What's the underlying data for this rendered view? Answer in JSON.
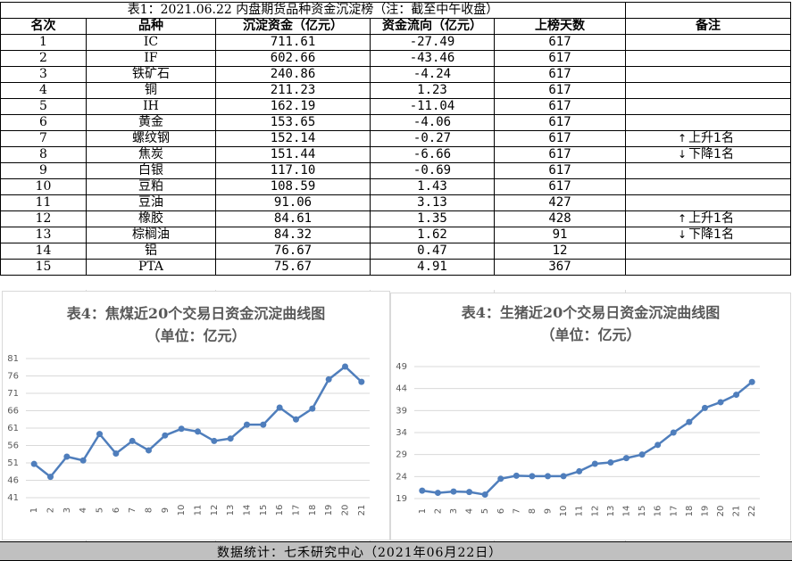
{
  "table": {
    "title": "表1：2021.06.22 内盘期货品种资金沉淀榜（注：截至中午收盘）",
    "headers": [
      "名次",
      "品种",
      "沉淀资金（亿元）",
      "资金流向（亿元）",
      "上榜天数",
      "备注"
    ],
    "rows": [
      {
        "rank": "1",
        "name": "IC",
        "sed": "711.61",
        "flow": "-27.49",
        "days": "617",
        "note": ""
      },
      {
        "rank": "2",
        "name": "IF",
        "sed": "602.66",
        "flow": "-43.46",
        "days": "617",
        "note": ""
      },
      {
        "rank": "3",
        "name": "铁矿石",
        "sed": "240.86",
        "flow": "-4.24",
        "days": "617",
        "note": ""
      },
      {
        "rank": "4",
        "name": "铜",
        "sed": "211.23",
        "flow": "1.23",
        "days": "617",
        "note": ""
      },
      {
        "rank": "5",
        "name": "IH",
        "sed": "162.19",
        "flow": "-11.04",
        "days": "617",
        "note": ""
      },
      {
        "rank": "6",
        "name": "黄金",
        "sed": "153.65",
        "flow": "-4.06",
        "days": "617",
        "note": ""
      },
      {
        "rank": "7",
        "name": "螺纹钢",
        "sed": "152.14",
        "flow": "-0.27",
        "days": "617",
        "note": "上升1名",
        "arrow": "↑"
      },
      {
        "rank": "8",
        "name": "焦炭",
        "sed": "151.44",
        "flow": "-6.66",
        "days": "617",
        "note": "下降1名",
        "arrow": "↓"
      },
      {
        "rank": "9",
        "name": "白银",
        "sed": "117.10",
        "flow": "-0.69",
        "days": "617",
        "note": ""
      },
      {
        "rank": "10",
        "name": "豆粕",
        "sed": "108.59",
        "flow": "1.43",
        "days": "617",
        "note": ""
      },
      {
        "rank": "11",
        "name": "豆油",
        "sed": "91.06",
        "flow": "3.13",
        "days": "427",
        "note": ""
      },
      {
        "rank": "12",
        "name": "橡胶",
        "sed": "84.61",
        "flow": "1.35",
        "days": "428",
        "note": "上升1名",
        "arrow": "↑"
      },
      {
        "rank": "13",
        "name": "棕榈油",
        "sed": "84.32",
        "flow": "1.62",
        "days": "91",
        "note": "下降1名",
        "arrow": "↓"
      },
      {
        "rank": "14",
        "name": "铝",
        "sed": "76.67",
        "flow": "0.47",
        "days": "12",
        "note": ""
      },
      {
        "rank": "15",
        "name": "PTA",
        "sed": "75.67",
        "flow": "4.91",
        "days": "367",
        "note": ""
      }
    ]
  },
  "chart_data": [
    {
      "type": "line",
      "title": "表4：焦煤近20个交易日资金沉淀曲线图",
      "subtitle": "（单位：亿元）",
      "x": [
        "1",
        "2",
        "3",
        "4",
        "5",
        "6",
        "7",
        "8",
        "9",
        "10",
        "11",
        "12",
        "13",
        "14",
        "15",
        "16",
        "17",
        "18",
        "19",
        "20",
        "21"
      ],
      "values": [
        50.7,
        47.0,
        52.8,
        51.7,
        59.3,
        53.7,
        57.3,
        54.6,
        58.9,
        60.8,
        60.0,
        57.3,
        58.0,
        62.0,
        62.0,
        66.9,
        63.5,
        66.6,
        75.0,
        78.7,
        74.3
      ],
      "ylim": [
        41,
        81
      ],
      "yticks": [
        41,
        46,
        51,
        56,
        61,
        66,
        71,
        76,
        81
      ],
      "color": "#4f7ebc",
      "grid": true
    },
    {
      "type": "line",
      "title": "表4：生猪近20个交易日资金沉淀曲线图",
      "subtitle": "（单位：亿元）",
      "x": [
        "1",
        "2",
        "3",
        "4",
        "5",
        "6",
        "7",
        "8",
        "9",
        "10",
        "11",
        "12",
        "13",
        "14",
        "15",
        "16",
        "17",
        "18",
        "19",
        "20",
        "21",
        "22"
      ],
      "values": [
        20.8,
        20.3,
        20.6,
        20.5,
        19.9,
        23.5,
        24.2,
        24.1,
        24.1,
        24.1,
        25.2,
        26.9,
        27.2,
        28.2,
        29.0,
        31.2,
        34.0,
        36.4,
        39.6,
        40.9,
        42.6,
        45.5
      ],
      "ylim": [
        19,
        49
      ],
      "yticks": [
        19,
        24,
        29,
        34,
        39,
        44,
        49
      ],
      "color": "#4f7ebc",
      "grid": true
    }
  ],
  "footer": {
    "text": "数据统计：七禾研究中心（2021年06月22日）"
  }
}
